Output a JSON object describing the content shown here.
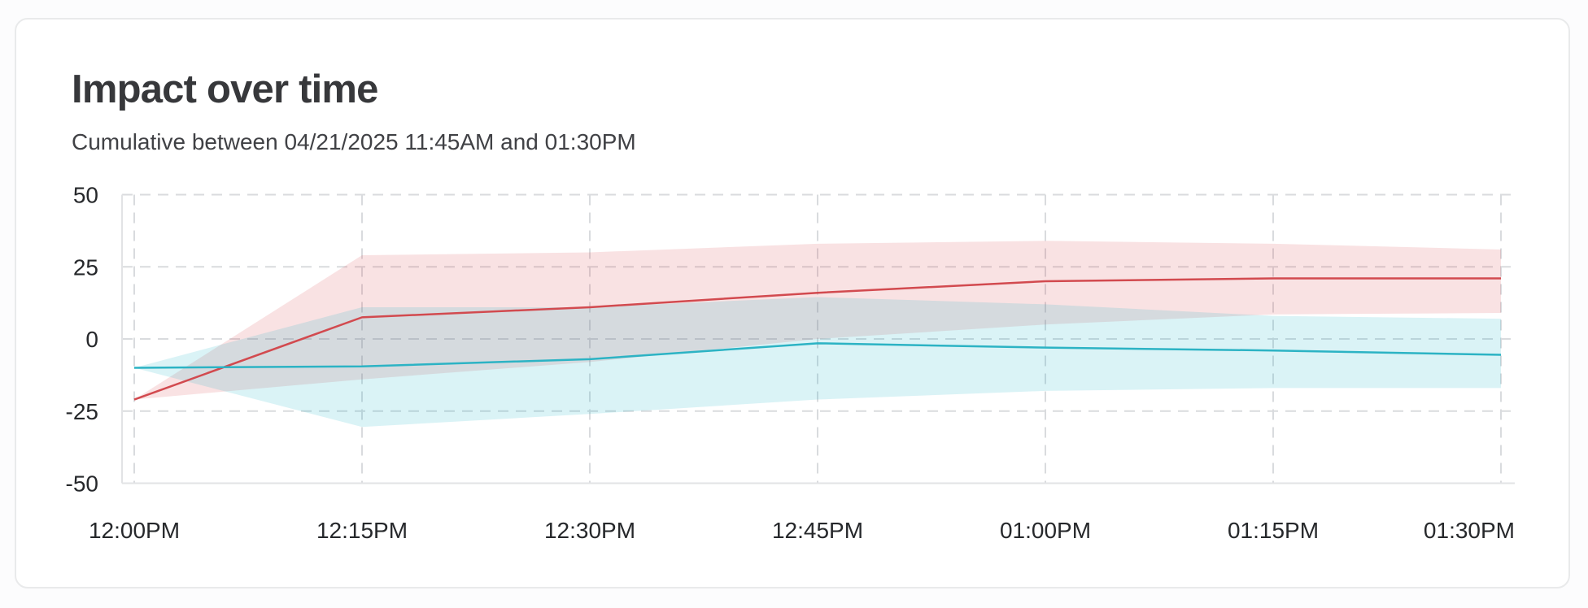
{
  "card": {
    "title": "Impact over time",
    "subtitle": "Cumulative between 04/21/2025 11:45AM and 01:30PM"
  },
  "chart_data": {
    "type": "line",
    "title": "Impact over time",
    "subtitle": "Cumulative between 04/21/2025 11:45AM and 01:30PM",
    "x_tick_labels": [
      "12:00PM",
      "12:15PM",
      "12:30PM",
      "12:45PM",
      "01:00PM",
      "01:15PM",
      "01:30PM"
    ],
    "y_ticks": [
      50,
      25,
      0,
      -25,
      -50
    ],
    "ylim": [
      -50,
      50
    ],
    "grid": "dashed horizontal and vertical gridlines at every tick",
    "legend": "none",
    "series": [
      {
        "name": "red",
        "line_color": "#d24a4f",
        "band_color": "#d9494e",
        "band_opacity": 0.16,
        "values": [
          -21,
          7.5,
          11,
          16,
          20,
          21,
          21
        ],
        "band_upper": [
          -21,
          29,
          30,
          33,
          34,
          33,
          31
        ],
        "band_lower": [
          -21,
          -14,
          -8,
          0,
          5,
          8.5,
          9
        ]
      },
      {
        "name": "teal",
        "line_color": "#2cb3c4",
        "band_color": "#17b5ca",
        "band_opacity": 0.16,
        "values": [
          -10,
          -9.5,
          -7,
          -1.5,
          -3,
          -4,
          -5.5
        ],
        "band_upper": [
          -10,
          11,
          11,
          14.5,
          12,
          8,
          7
        ],
        "band_lower": [
          -10,
          -30.5,
          -26,
          -21,
          -18,
          -17,
          -17
        ]
      }
    ],
    "colors": {
      "gridline": "#d9dbde",
      "axis_line": "#e2e3e5",
      "tick_label": "#26282b"
    }
  }
}
